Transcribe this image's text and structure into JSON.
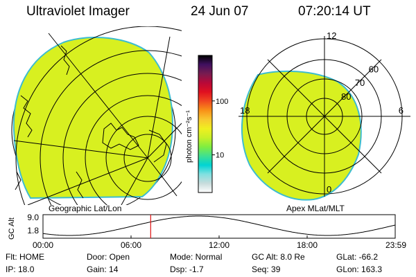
{
  "header": {
    "title": "Ultraviolet Imager",
    "date": "24 Jun 07",
    "time": "07:20:14 UT"
  },
  "colorbar": {
    "unit_label": "photon cm⁻²s⁻¹",
    "ticks": [
      {
        "label": "100",
        "value": 100
      },
      {
        "label": "10",
        "value": 10
      }
    ],
    "range": [
      2,
      700
    ],
    "stops": [
      "#ffffff",
      "#c8dcdc",
      "#80e0e0",
      "#00d4d4",
      "#40e090",
      "#80ee40",
      "#c8f028",
      "#f0f020",
      "#f8c830",
      "#f89018",
      "#f04820",
      "#e01020",
      "#b80838",
      "#781c50",
      "#401060",
      "#000000"
    ]
  },
  "panels": {
    "geographic": {
      "label": "Geographic Lat/Lon",
      "fill_color": "#d8f020",
      "edge_color": "#3cbcd0"
    },
    "apex": {
      "label": "Apex MLat/MLT",
      "fill_color": "#d8f020",
      "edge_color": "#3cbcd0",
      "hour_labels": [
        {
          "text": "12",
          "angle_deg": 90
        },
        {
          "text": "18",
          "angle_deg": 180
        },
        {
          "text": "6",
          "angle_deg": 0
        },
        {
          "text": "0",
          "angle_deg": 270
        }
      ],
      "lat_labels": [
        "60",
        "70",
        "80"
      ]
    }
  },
  "altitude_plot": {
    "ylabel": "GC Alt",
    "yticks": [
      "9.0",
      "1.8"
    ],
    "yrange": [
      1.8,
      9.0
    ],
    "xticks": [
      "00:00",
      "06:00",
      "12:00",
      "18:00",
      "23:59"
    ],
    "current_time_hours": 7.34,
    "marker_color": "#e02020"
  },
  "info": {
    "flt": "Flt: HOME",
    "ip": "IP: 18.0",
    "door": "Door: Open",
    "gain": "Gain: 14",
    "mode": "Mode: Normal",
    "dsp": "Dsp:   -1.7",
    "gc_alt": "GC Alt: 8.0 Re",
    "seq": "Seq: 39",
    "glat": "GLat: -66.2",
    "glon": "GLon: 163.3"
  }
}
